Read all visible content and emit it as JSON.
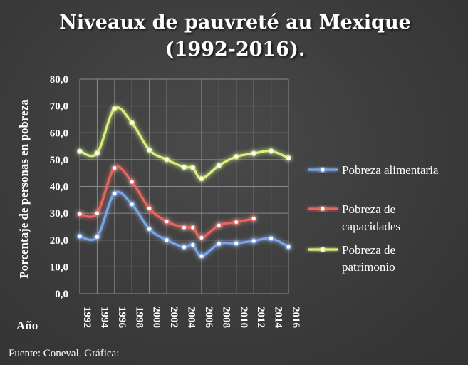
{
  "chart_data": {
    "type": "line",
    "title_lines": [
      "Niveaux de pauvreté au Mexique",
      "(1992-2016)."
    ],
    "ylabel": "Porcentaje de personas en pobreza",
    "xlabel": "Año",
    "source": "Fuente: Coneval. Gráfica:",
    "ylim": [
      0,
      80
    ],
    "ytick_step": 10,
    "yticks": [
      "0,0",
      "10,0",
      "20,0",
      "30,0",
      "40,0",
      "50,0",
      "60,0",
      "70,0",
      "80,0"
    ],
    "xticks": [
      "1992",
      "1994",
      "1996",
      "1998",
      "2000",
      "2002",
      "2004",
      "2006",
      "2008",
      "2010",
      "2012",
      "2014",
      "2016"
    ],
    "grid": true,
    "legend_position": "right",
    "series": [
      {
        "name": "Pobreza alimentaria",
        "color": "#7aa6e8",
        "points": [
          [
            1992,
            21.4
          ],
          [
            1994,
            21.2
          ],
          [
            1996,
            37.4
          ],
          [
            1998,
            33.3
          ],
          [
            2000,
            24.1
          ],
          [
            2002,
            20.0
          ],
          [
            2004,
            17.4
          ],
          [
            2005,
            18.2
          ],
          [
            2006,
            14.0
          ],
          [
            2008,
            18.6
          ],
          [
            2010,
            18.8
          ],
          [
            2012,
            19.7
          ],
          [
            2014,
            20.6
          ],
          [
            2016,
            17.5
          ]
        ]
      },
      {
        "name": "Pobreza de capacidades",
        "color": "#e8665e",
        "points": [
          [
            1992,
            29.7
          ],
          [
            1994,
            30.0
          ],
          [
            1996,
            46.9
          ],
          [
            1998,
            41.7
          ],
          [
            2000,
            31.8
          ],
          [
            2002,
            26.9
          ],
          [
            2004,
            24.7
          ],
          [
            2005,
            24.7
          ],
          [
            2006,
            20.9
          ],
          [
            2008,
            25.5
          ],
          [
            2010,
            26.7
          ],
          [
            2012,
            28.0
          ]
        ]
      },
      {
        "name": "Pobreza de patrimonio",
        "color": "#d7f27a",
        "points": [
          [
            1992,
            53.1
          ],
          [
            1994,
            52.4
          ],
          [
            1996,
            69.0
          ],
          [
            1998,
            63.7
          ],
          [
            2000,
            53.6
          ],
          [
            2002,
            50.0
          ],
          [
            2004,
            47.2
          ],
          [
            2005,
            47.0
          ],
          [
            2006,
            42.9
          ],
          [
            2008,
            47.8
          ],
          [
            2010,
            51.1
          ],
          [
            2012,
            52.3
          ],
          [
            2014,
            53.2
          ],
          [
            2016,
            50.6
          ]
        ]
      }
    ],
    "legend_lines": [
      [
        "Pobreza alimentaria"
      ],
      [
        "Pobreza de",
        "capacidades"
      ],
      [
        "Pobreza de",
        "patrimonio"
      ]
    ]
  }
}
